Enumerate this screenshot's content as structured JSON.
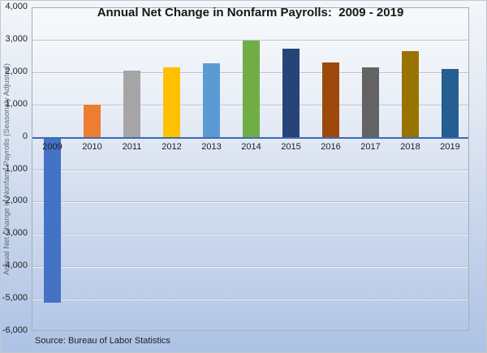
{
  "header": {
    "title": "Annual Net Change in Nonfarm Payrolls:  2009 - 2019"
  },
  "source_note": "Source: Bureau of Labor Statistics",
  "chart_data": {
    "type": "bar",
    "title": "Annual Net Change in Nonfarm Payrolls:  2009 - 2019",
    "categories": [
      "2009",
      "2010",
      "2011",
      "2012",
      "2013",
      "2014",
      "2015",
      "2016",
      "2017",
      "2018",
      "2019"
    ],
    "values": [
      -5100,
      1030,
      2080,
      2180,
      2300,
      3000,
      2750,
      2330,
      2160,
      2680,
      2130
    ],
    "bar_colors": [
      "#4472C4",
      "#ED7D31",
      "#A5A5A5",
      "#FFC000",
      "#5B9BD5",
      "#70AD47",
      "#264478",
      "#9E480E",
      "#636363",
      "#997300",
      "#255E91"
    ],
    "xlabel": "",
    "ylabel": "Annual Net Change in Nonfarm Payrolls (Seasonaly Adjusted)",
    "ylim": [
      -6000,
      4000
    ],
    "ytick_interval": 1000,
    "ytick_labels": [
      "4,000",
      "3,000",
      "2,000",
      "1,000",
      "0",
      "-1,000",
      "-2,000",
      "-3,000",
      "-4,000",
      "-5,000",
      "-6,000"
    ],
    "grid": true,
    "legend": "none",
    "zero_line_color": "#3E6AB2",
    "source": "Source: Bureau of Labor Statistics"
  }
}
